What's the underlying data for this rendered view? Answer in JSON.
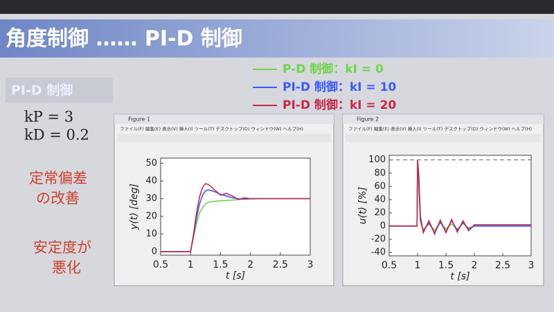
{
  "slide": {
    "title": "角度制御 …… PI-D 制御",
    "box_label": "PI-D 制御",
    "params": [
      "kP = 3",
      "kD = 0.2"
    ],
    "note_improve": [
      "定常偏差",
      "の改善"
    ],
    "note_worse": [
      "安定度が",
      "悪化"
    ],
    "figures": [
      {
        "title": "Figure 1"
      },
      {
        "title": "Figure 2"
      }
    ],
    "menu": "ファイル(F) 編集(E) 表示(V) 挿入(I) ツール(T) デスクトップ(D) ウィンドウ(W) ヘルプ(H)"
  },
  "chart_data": [
    {
      "type": "line",
      "xlabel": "t [s]",
      "ylabel": "y(t) [deg]",
      "x": [
        0.5,
        1.0,
        1.05,
        1.1,
        1.15,
        1.2,
        1.25,
        1.3,
        1.4,
        1.5,
        1.6,
        1.7,
        1.8,
        1.9,
        2.0,
        2.2,
        2.5,
        3.0
      ],
      "series": [
        {
          "name": "P-D 制御：kI = 0",
          "color": "#6fd44a",
          "values": [
            0,
            0,
            8,
            16,
            22,
            25,
            27,
            28,
            28.5,
            28.8,
            29,
            29.2,
            29.5,
            29.7,
            29.8,
            30,
            30,
            30
          ]
        },
        {
          "name": "PI-D 制御：kI = 10",
          "color": "#3a5bff",
          "values": [
            0,
            0,
            9,
            19,
            27,
            32,
            34.5,
            35,
            34,
            32.5,
            31.5,
            30.5,
            30,
            29.8,
            30,
            30,
            30,
            30
          ]
        },
        {
          "name": "PI-D 制御：kI = 20",
          "color": "#c8284a",
          "values": [
            0,
            0,
            10,
            22,
            31,
            36.5,
            38.5,
            38,
            35,
            32,
            33,
            31.5,
            29.5,
            30.5,
            30,
            30,
            30,
            30
          ]
        }
      ],
      "xlim": [
        0.5,
        3
      ],
      "xticks": [
        0.5,
        1,
        1.5,
        2,
        2.5,
        3
      ],
      "ylim": [
        -2,
        53
      ],
      "yticks": [
        0,
        10,
        20,
        30,
        40,
        50
      ]
    },
    {
      "type": "line",
      "xlabel": "t [s]",
      "ylabel": "u(t) [%]",
      "x": [
        0.5,
        0.99,
        1.0,
        1.02,
        1.05,
        1.1,
        1.2,
        1.3,
        1.4,
        1.5,
        1.6,
        1.7,
        1.8,
        1.9,
        2.0,
        2.5,
        3.0
      ],
      "series": [
        {
          "color": "#6fd44a",
          "values": [
            0,
            0,
            100,
            60,
            5,
            -5,
            3,
            -6,
            5,
            -4,
            3,
            -5,
            4,
            -3,
            0,
            0,
            0
          ]
        },
        {
          "color": "#3a5bff",
          "values": [
            0,
            0,
            100,
            70,
            10,
            -8,
            5,
            -10,
            6,
            -8,
            8,
            -6,
            5,
            -4,
            0,
            0,
            0
          ]
        },
        {
          "color": "#c8284a",
          "values": [
            0,
            0,
            100,
            80,
            15,
            -10,
            8,
            -12,
            9,
            -10,
            10,
            -9,
            8,
            -7,
            2,
            2,
            2
          ]
        }
      ],
      "hline": 100,
      "xlim": [
        0.5,
        3
      ],
      "xticks": [
        0.5,
        1,
        1.5,
        2,
        2.5,
        3
      ],
      "ylim": [
        -45,
        107
      ],
      "yticks": [
        -40,
        -20,
        0,
        20,
        40,
        60,
        80,
        100
      ]
    }
  ]
}
